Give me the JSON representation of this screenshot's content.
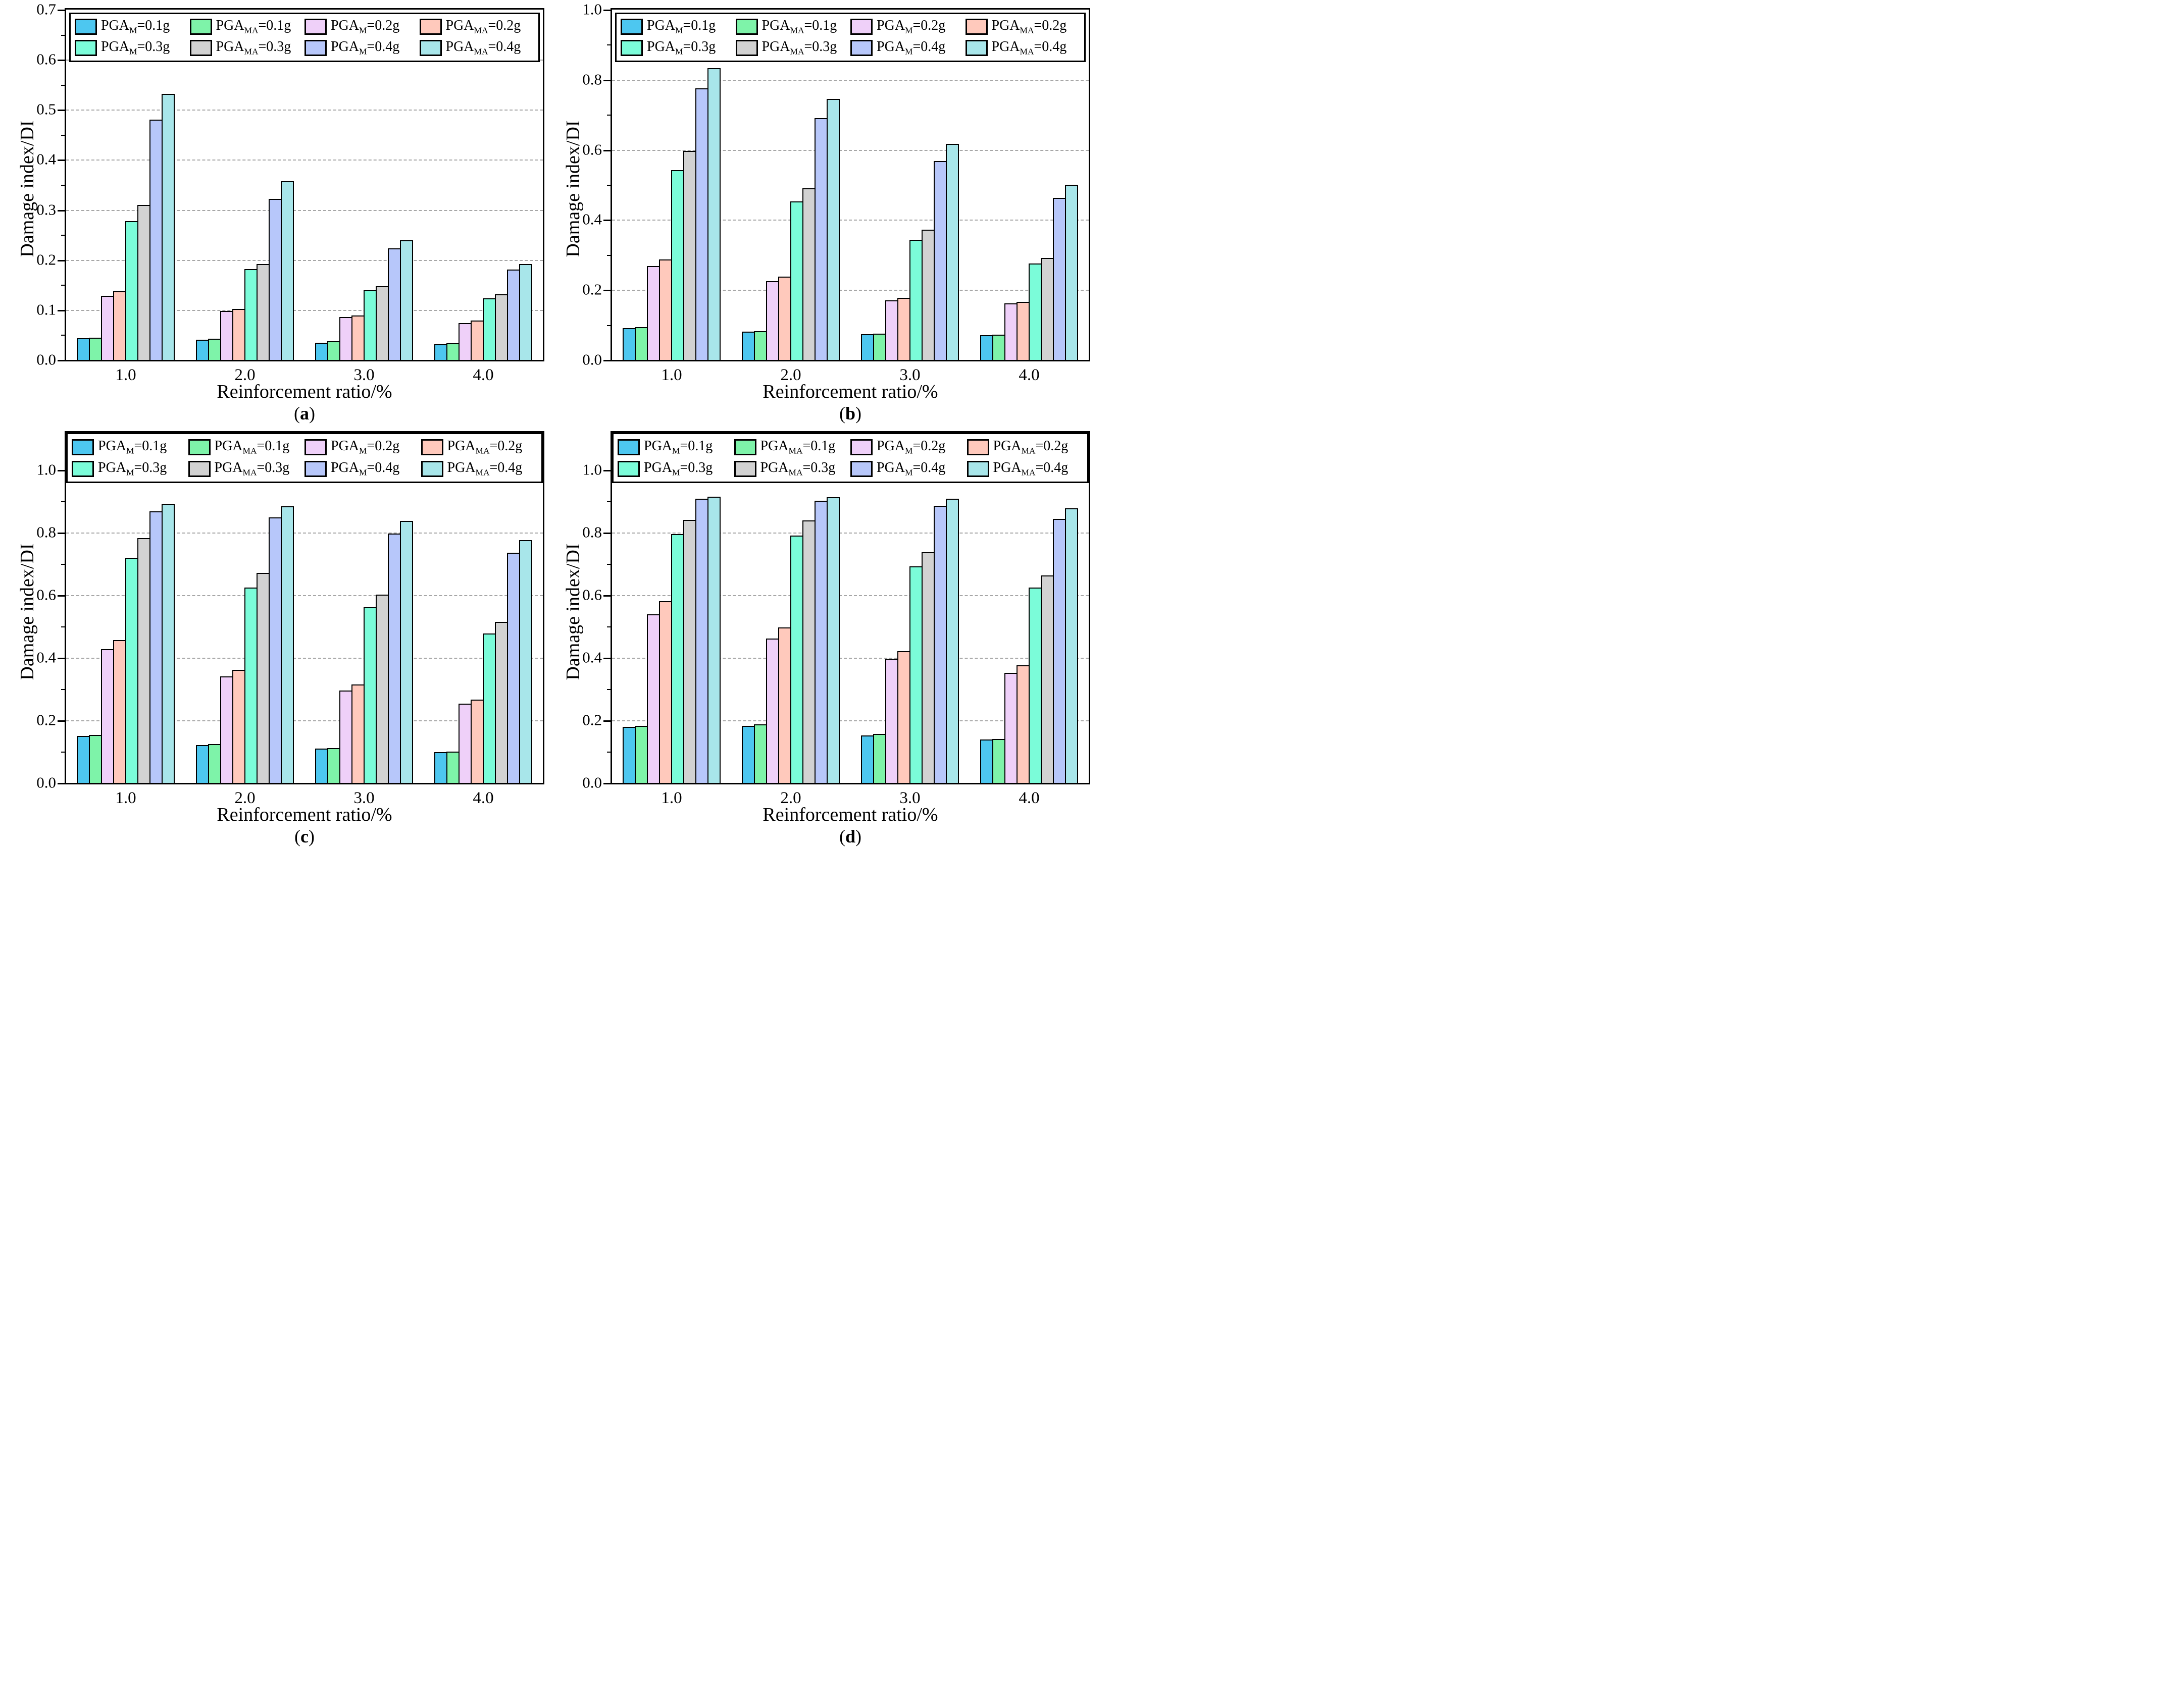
{
  "figure": {
    "xlabel": "Reinforcement ratio/%",
    "ylabel": "Damage index/DI"
  },
  "chart_data": [
    {
      "id": "a",
      "type": "bar",
      "panel_label": {
        "open": "(",
        "letter": "a",
        "close": ")"
      },
      "xlabel": "Reinforcement ratio/%",
      "ylabel": "Damage index/DI",
      "categories": [
        "1.0",
        "2.0",
        "3.0",
        "4.0"
      ],
      "ylim": [
        0,
        0.7
      ],
      "yticks": [
        "0.0",
        "0.1",
        "0.2",
        "0.3",
        "0.4",
        "0.5",
        "0.6",
        "0.7"
      ],
      "grid": "horizontal-dashed",
      "legend_position": "top-inside",
      "series": [
        {
          "name": "PGA_M=0.1g",
          "label": {
            "base": "PGA",
            "sub": "M",
            "eq": "=0.1g"
          },
          "color": "#4dc7f0",
          "values": [
            0.043,
            0.04,
            0.034,
            0.031
          ]
        },
        {
          "name": "PGA_MA=0.1g",
          "label": {
            "base": "PGA",
            "sub": "MA",
            "eq": "=0.1g"
          },
          "color": "#7ef3a9",
          "values": [
            0.044,
            0.042,
            0.037,
            0.033
          ]
        },
        {
          "name": "PGA_M=0.2g",
          "label": {
            "base": "PGA",
            "sub": "M",
            "eq": "=0.2g"
          },
          "color": "#efd0f9",
          "values": [
            0.128,
            0.098,
            0.086,
            0.074
          ]
        },
        {
          "name": "PGA_MA=0.2g",
          "label": {
            "base": "PGA",
            "sub": "MA",
            "eq": "=0.2g"
          },
          "color": "#ffc9bc",
          "values": [
            0.137,
            0.102,
            0.089,
            0.079
          ]
        },
        {
          "name": "PGA_M=0.3g",
          "label": {
            "base": "PGA",
            "sub": "M",
            "eq": "=0.3g"
          },
          "color": "#7bfcd9",
          "values": [
            0.277,
            0.182,
            0.139,
            0.123
          ]
        },
        {
          "name": "PGA_MA=0.3g",
          "label": {
            "base": "PGA",
            "sub": "MA",
            "eq": "=0.3g"
          },
          "color": "#d2d2d2",
          "values": [
            0.31,
            0.192,
            0.147,
            0.131
          ]
        },
        {
          "name": "PGA_M=0.4g",
          "label": {
            "base": "PGA",
            "sub": "M",
            "eq": "=0.4g"
          },
          "color": "#b7c7fa",
          "values": [
            0.48,
            0.322,
            0.223,
            0.181
          ]
        },
        {
          "name": "PGA_MA=0.4g",
          "label": {
            "base": "PGA",
            "sub": "MA",
            "eq": "=0.4g"
          },
          "color": "#a8e6ea",
          "values": [
            0.532,
            0.357,
            0.239,
            0.192
          ]
        }
      ]
    },
    {
      "id": "b",
      "type": "bar",
      "panel_label": {
        "open": "(",
        "letter": "b",
        "close": ")"
      },
      "xlabel": "Reinforcement ratio/%",
      "ylabel": "Damage index/DI",
      "categories": [
        "1.0",
        "2.0",
        "3.0",
        "4.0"
      ],
      "ylim": [
        0,
        1.0
      ],
      "yticks": [
        "0.0",
        "0.2",
        "0.4",
        "0.6",
        "0.8",
        "1.0"
      ],
      "grid": "horizontal-dashed",
      "legend_position": "top-inside",
      "series": [
        {
          "name": "PGA_M=0.1g",
          "label": {
            "base": "PGA",
            "sub": "M",
            "eq": "=0.1g"
          },
          "color": "#4dc7f0",
          "values": [
            0.091,
            0.081,
            0.074,
            0.07
          ]
        },
        {
          "name": "PGA_MA=0.1g",
          "label": {
            "base": "PGA",
            "sub": "MA",
            "eq": "=0.1g"
          },
          "color": "#7ef3a9",
          "values": [
            0.093,
            0.082,
            0.075,
            0.072
          ]
        },
        {
          "name": "PGA_M=0.2g",
          "label": {
            "base": "PGA",
            "sub": "M",
            "eq": "=0.2g"
          },
          "color": "#efd0f9",
          "values": [
            0.268,
            0.225,
            0.17,
            0.161
          ]
        },
        {
          "name": "PGA_MA=0.2g",
          "label": {
            "base": "PGA",
            "sub": "MA",
            "eq": "=0.2g"
          },
          "color": "#ffc9bc",
          "values": [
            0.287,
            0.238,
            0.177,
            0.165
          ]
        },
        {
          "name": "PGA_M=0.3g",
          "label": {
            "base": "PGA",
            "sub": "M",
            "eq": "=0.3g"
          },
          "color": "#7bfcd9",
          "values": [
            0.542,
            0.453,
            0.343,
            0.275
          ]
        },
        {
          "name": "PGA_MA=0.3g",
          "label": {
            "base": "PGA",
            "sub": "MA",
            "eq": "=0.3g"
          },
          "color": "#d2d2d2",
          "values": [
            0.597,
            0.49,
            0.372,
            0.291
          ]
        },
        {
          "name": "PGA_M=0.4g",
          "label": {
            "base": "PGA",
            "sub": "M",
            "eq": "=0.4g"
          },
          "color": "#b7c7fa",
          "values": [
            0.775,
            0.69,
            0.568,
            0.462
          ]
        },
        {
          "name": "PGA_MA=0.4g",
          "label": {
            "base": "PGA",
            "sub": "MA",
            "eq": "=0.4g"
          },
          "color": "#a8e6ea",
          "values": [
            0.833,
            0.745,
            0.617,
            0.5
          ]
        }
      ]
    },
    {
      "id": "c",
      "type": "bar",
      "panel_label": {
        "open": "(",
        "letter": "c",
        "close": ")"
      },
      "xlabel": "Reinforcement ratio/%",
      "ylabel": "Damage index/DI",
      "categories": [
        "1.0",
        "2.0",
        "3.0",
        "4.0"
      ],
      "ylim": [
        0,
        1.0
      ],
      "yticks": [
        "0.0",
        "0.2",
        "0.4",
        "0.6",
        "0.8",
        "1.0"
      ],
      "grid": "horizontal-dashed",
      "legend_position": "top-banner",
      "series": [
        {
          "name": "PGA_M=0.1g",
          "label": {
            "base": "PGA",
            "sub": "M",
            "eq": "=0.1g"
          },
          "color": "#4dc7f0",
          "values": [
            0.15,
            0.121,
            0.11,
            0.098
          ]
        },
        {
          "name": "PGA_MA=0.1g",
          "label": {
            "base": "PGA",
            "sub": "MA",
            "eq": "=0.1g"
          },
          "color": "#7ef3a9",
          "values": [
            0.154,
            0.124,
            0.112,
            0.1
          ]
        },
        {
          "name": "PGA_M=0.2g",
          "label": {
            "base": "PGA",
            "sub": "M",
            "eq": "=0.2g"
          },
          "color": "#efd0f9",
          "values": [
            0.427,
            0.341,
            0.295,
            0.254
          ]
        },
        {
          "name": "PGA_MA=0.2g",
          "label": {
            "base": "PGA",
            "sub": "MA",
            "eq": "=0.2g"
          },
          "color": "#ffc9bc",
          "values": [
            0.457,
            0.362,
            0.314,
            0.266
          ]
        },
        {
          "name": "PGA_M=0.3g",
          "label": {
            "base": "PGA",
            "sub": "M",
            "eq": "=0.3g"
          },
          "color": "#7bfcd9",
          "values": [
            0.72,
            0.625,
            0.562,
            0.478
          ]
        },
        {
          "name": "PGA_MA=0.3g",
          "label": {
            "base": "PGA",
            "sub": "MA",
            "eq": "=0.3g"
          },
          "color": "#d2d2d2",
          "values": [
            0.782,
            0.672,
            0.602,
            0.515
          ]
        },
        {
          "name": "PGA_M=0.4g",
          "label": {
            "base": "PGA",
            "sub": "M",
            "eq": "=0.4g"
          },
          "color": "#b7c7fa",
          "values": [
            0.868,
            0.849,
            0.798,
            0.736
          ]
        },
        {
          "name": "PGA_MA=0.4g",
          "label": {
            "base": "PGA",
            "sub": "MA",
            "eq": "=0.4g"
          },
          "color": "#a8e6ea",
          "values": [
            0.892,
            0.884,
            0.837,
            0.777
          ]
        }
      ]
    },
    {
      "id": "d",
      "type": "bar",
      "panel_label": {
        "open": "(",
        "letter": "d",
        "close": ")"
      },
      "xlabel": "Reinforcement ratio/%",
      "ylabel": "Damage index/DI",
      "categories": [
        "1.0",
        "2.0",
        "3.0",
        "4.0"
      ],
      "ylim": [
        0,
        1.0
      ],
      "yticks": [
        "0.0",
        "0.2",
        "0.4",
        "0.6",
        "0.8",
        "1.0"
      ],
      "grid": "horizontal-dashed",
      "legend_position": "top-banner",
      "series": [
        {
          "name": "PGA_M=0.1g",
          "label": {
            "base": "PGA",
            "sub": "M",
            "eq": "=0.1g"
          },
          "color": "#4dc7f0",
          "values": [
            0.179,
            0.183,
            0.151,
            0.138
          ]
        },
        {
          "name": "PGA_MA=0.1g",
          "label": {
            "base": "PGA",
            "sub": "MA",
            "eq": "=0.1g"
          },
          "color": "#7ef3a9",
          "values": [
            0.183,
            0.188,
            0.156,
            0.141
          ]
        },
        {
          "name": "PGA_M=0.2g",
          "label": {
            "base": "PGA",
            "sub": "M",
            "eq": "=0.2g"
          },
          "color": "#efd0f9",
          "values": [
            0.539,
            0.461,
            0.397,
            0.352
          ]
        },
        {
          "name": "PGA_MA=0.2g",
          "label": {
            "base": "PGA",
            "sub": "MA",
            "eq": "=0.2g"
          },
          "color": "#ffc9bc",
          "values": [
            0.581,
            0.497,
            0.421,
            0.376
          ]
        },
        {
          "name": "PGA_M=0.3g",
          "label": {
            "base": "PGA",
            "sub": "M",
            "eq": "=0.3g"
          },
          "color": "#7bfcd9",
          "values": [
            0.795,
            0.79,
            0.693,
            0.625
          ]
        },
        {
          "name": "PGA_MA=0.3g",
          "label": {
            "base": "PGA",
            "sub": "MA",
            "eq": "=0.3g"
          },
          "color": "#d2d2d2",
          "values": [
            0.841,
            0.84,
            0.738,
            0.663
          ]
        },
        {
          "name": "PGA_M=0.4g",
          "label": {
            "base": "PGA",
            "sub": "M",
            "eq": "=0.4g"
          },
          "color": "#b7c7fa",
          "values": [
            0.908,
            0.902,
            0.886,
            0.844
          ]
        },
        {
          "name": "PGA_MA=0.4g",
          "label": {
            "base": "PGA",
            "sub": "MA",
            "eq": "=0.4g"
          },
          "color": "#a8e6ea",
          "values": [
            0.915,
            0.913,
            0.908,
            0.878
          ]
        }
      ]
    }
  ]
}
